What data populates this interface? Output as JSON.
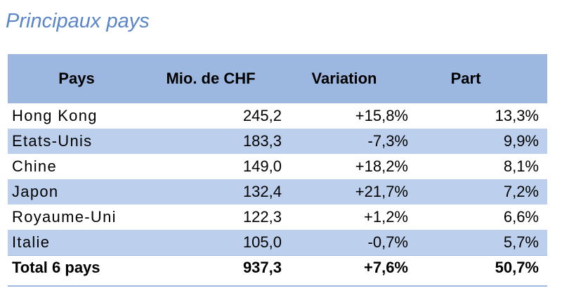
{
  "title": "Principaux pays",
  "colors": {
    "title": "#5a86c8",
    "header_band": "#9db8e0",
    "row_band": "#bccfec"
  },
  "chart_data": {
    "type": "table",
    "title": "Principaux pays",
    "columns": [
      "Pays",
      "Mio. de CHF",
      "Variation",
      "Part"
    ],
    "rows": [
      {
        "pays": "Hong Kong",
        "mio": "245,2",
        "variation": "+15,8%",
        "part": "13,3%"
      },
      {
        "pays": "Etats-Unis",
        "mio": "183,3",
        "variation": "-7,3%",
        "part": "9,9%"
      },
      {
        "pays": "Chine",
        "mio": "149,0",
        "variation": "+18,2%",
        "part": "8,1%"
      },
      {
        "pays": "Japon",
        "mio": "132,4",
        "variation": "+21,7%",
        "part": "7,2%"
      },
      {
        "pays": "Royaume-Uni",
        "mio": "122,3",
        "variation": "+1,2%",
        "part": "6,6%"
      },
      {
        "pays": "Italie",
        "mio": "105,0",
        "variation": "-0,7%",
        "part": "5,7%"
      }
    ],
    "total": {
      "pays": "Total 6 pays",
      "mio": "937,3",
      "variation": "+7,6%",
      "part": "50,7%"
    }
  }
}
